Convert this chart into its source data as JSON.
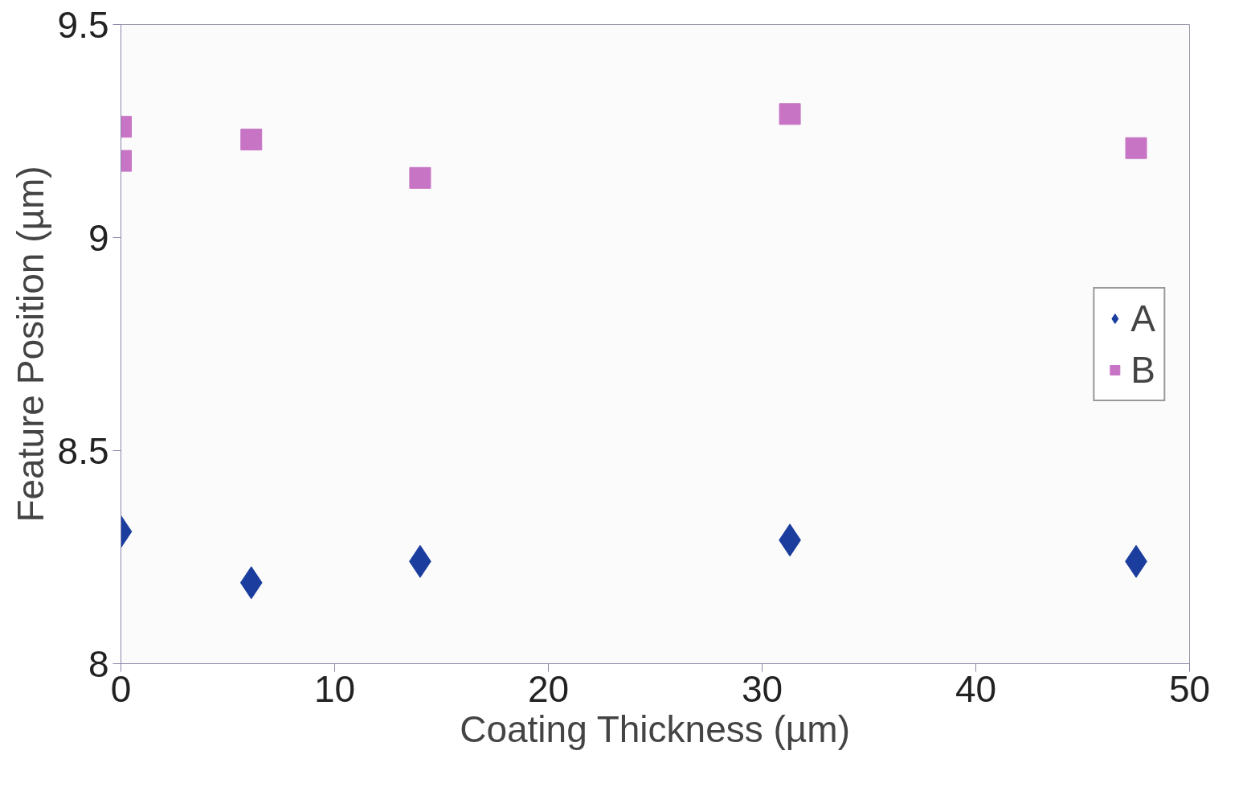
{
  "chart_data": {
    "type": "scatter",
    "xlabel": "Coating Thickness (µm)",
    "ylabel": "Feature Position (µm)",
    "xlim": [
      0,
      50
    ],
    "xticks": [
      0,
      10,
      20,
      30,
      40,
      50
    ],
    "ylim": [
      8,
      9.5
    ],
    "yticks": [
      8,
      8.5,
      9,
      9.5
    ],
    "grid": false,
    "legend": "right",
    "series": [
      {
        "name": "A",
        "color": "#1a3d9e",
        "marker": "diamond",
        "x": [
          0,
          6.1,
          14,
          31.3,
          47.5
        ],
        "values": [
          8.31,
          8.19,
          8.24,
          8.29,
          8.24
        ]
      },
      {
        "name": "B",
        "color": "#c774c4",
        "marker": "square",
        "x": [
          0,
          0,
          6.1,
          14,
          31.3,
          47.5
        ],
        "values": [
          9.26,
          9.18,
          9.23,
          9.14,
          9.29,
          9.21
        ]
      }
    ]
  }
}
